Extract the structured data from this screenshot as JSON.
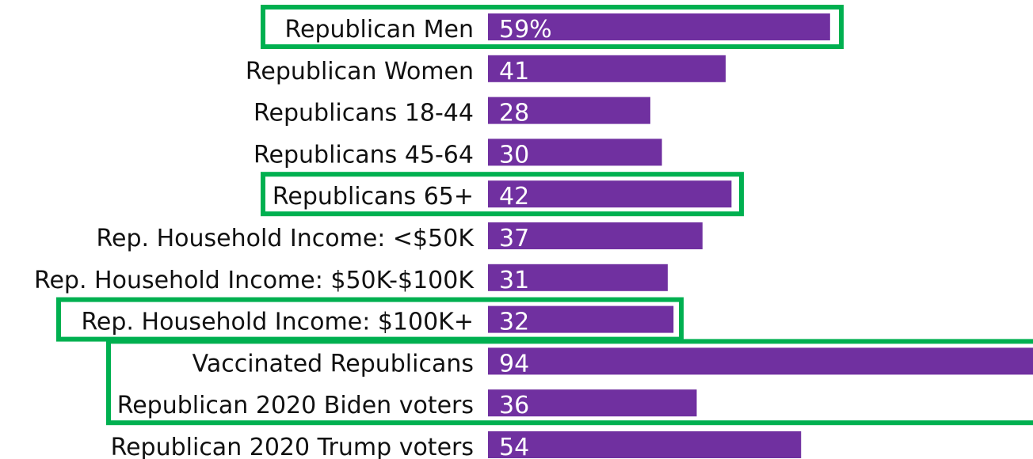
{
  "chart_data": {
    "type": "bar",
    "orientation": "horizontal",
    "categories": [
      "Republican Men",
      "Republican Women",
      "Republicans 18-44",
      "Republicans 45-64",
      "Republicans 65+",
      "Rep. Household Income: <$50K",
      "Rep. Household Income: $50K-$100K",
      "Rep. Household Income: $100K+",
      "Vaccinated Republicans",
      "Republican 2020 Biden voters",
      "Republican 2020 Trump voters"
    ],
    "values": [
      59,
      41,
      28,
      30,
      42,
      37,
      31,
      32,
      94,
      36,
      54
    ],
    "value_labels": [
      "59%",
      "41",
      "28",
      "30",
      "42",
      "37",
      "31",
      "32",
      "94",
      "36",
      "54"
    ],
    "title": "",
    "xlabel": "",
    "ylabel": "",
    "xlim": [
      0,
      94
    ],
    "grid": false,
    "legend": "none",
    "highlighted_groups": [
      [
        "Republican Men"
      ],
      [
        "Republicans 65+"
      ],
      [
        "Rep. Household Income: $100K+"
      ],
      [
        "Vaccinated Republicans",
        "Republican 2020 Biden voters"
      ]
    ],
    "colors": {
      "bar": "#7030a0",
      "highlight": "#00b050",
      "text": "#111111",
      "value_text": "#ffffff"
    }
  }
}
